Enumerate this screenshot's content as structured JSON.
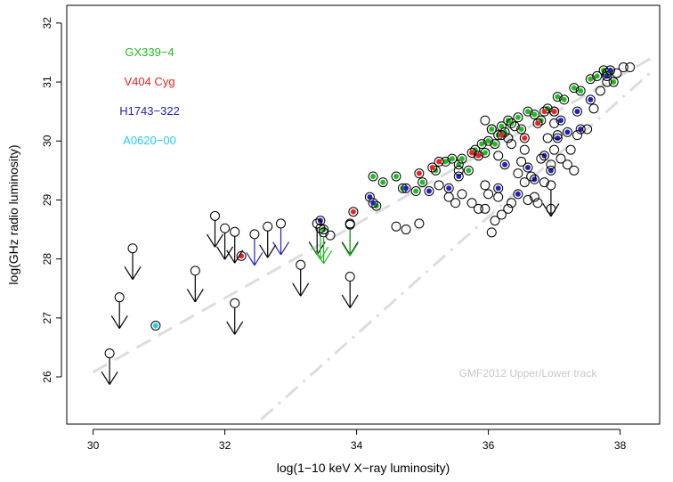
{
  "chart_data": {
    "type": "scatter",
    "xlabel": "log(1−10 keV X−ray luminosity)",
    "ylabel": "log(GHz radio luminosity)",
    "xlim": [
      29.6,
      38.6
    ],
    "ylim": [
      25.2,
      32.3
    ],
    "x_ticks": [
      30,
      32,
      34,
      36,
      38
    ],
    "y_ticks": [
      26,
      27,
      28,
      29,
      30,
      31,
      32
    ],
    "grid": false,
    "legend": {
      "placement": "top-left",
      "entries": [
        {
          "label": "GX339−4",
          "color": "#22bb22"
        },
        {
          "label": "V404 Cyg",
          "color": "#ee2222"
        },
        {
          "label": "H1743−322",
          "color": "#2222bb"
        },
        {
          "label": "A0620−00",
          "color": "#22ccee"
        }
      ]
    },
    "annotation": {
      "text": "GMF2012 Upper/Lower track",
      "color": "#c8c8c8",
      "x": 36.6,
      "y": 26.0
    },
    "tracks": [
      {
        "style": "dashed",
        "color": "#dddddd",
        "points": [
          [
            30.0,
            26.08
          ],
          [
            38.5,
            31.42
          ]
        ]
      },
      {
        "style": "dashdot",
        "color": "#dddddd",
        "points": [
          [
            32.55,
            25.28
          ],
          [
            38.5,
            31.2
          ]
        ]
      }
    ],
    "series": [
      {
        "name": "GX339−4",
        "marker": "filled-dot-in-circle",
        "color": "#22bb22",
        "points": [
          [
            34.25,
            29.4
          ],
          [
            34.4,
            29.3
          ],
          [
            34.6,
            29.4
          ],
          [
            34.7,
            29.2
          ],
          [
            34.9,
            29.15
          ],
          [
            35.0,
            29.3
          ],
          [
            35.2,
            29.5
          ],
          [
            35.35,
            29.65
          ],
          [
            35.45,
            29.7
          ],
          [
            35.55,
            29.6
          ],
          [
            35.6,
            29.7
          ],
          [
            35.7,
            29.5
          ],
          [
            35.8,
            29.85
          ],
          [
            35.9,
            29.95
          ],
          [
            36.0,
            30.0
          ],
          [
            36.05,
            30.2
          ],
          [
            36.15,
            30.1
          ],
          [
            36.2,
            30.25
          ],
          [
            36.3,
            30.35
          ],
          [
            36.35,
            30.3
          ],
          [
            36.45,
            30.4
          ],
          [
            36.5,
            30.2
          ],
          [
            36.6,
            30.5
          ],
          [
            36.7,
            30.45
          ],
          [
            36.8,
            30.35
          ],
          [
            36.9,
            30.55
          ],
          [
            37.0,
            30.5
          ],
          [
            37.05,
            30.75
          ],
          [
            37.15,
            30.7
          ],
          [
            37.3,
            30.9
          ],
          [
            37.4,
            30.85
          ],
          [
            37.55,
            31.05
          ],
          [
            37.65,
            31.1
          ],
          [
            37.75,
            31.2
          ],
          [
            37.8,
            31.15
          ],
          [
            37.9,
            31.0
          ],
          [
            36.1,
            29.95
          ],
          [
            36.25,
            30.15
          ],
          [
            35.95,
            29.8
          ],
          [
            34.3,
            28.9
          ],
          [
            33.5,
            28.5
          ]
        ]
      },
      {
        "name": "V404 Cyg",
        "marker": "filled-dot-in-circle",
        "color": "#ee2222",
        "points": [
          [
            32.25,
            28.05
          ],
          [
            33.95,
            28.8
          ],
          [
            34.95,
            29.45
          ],
          [
            35.15,
            29.55
          ],
          [
            35.25,
            29.65
          ],
          [
            35.75,
            29.8
          ],
          [
            35.85,
            29.75
          ],
          [
            36.2,
            30.1
          ],
          [
            36.55,
            30.05
          ],
          [
            36.75,
            30.3
          ],
          [
            36.85,
            30.5
          ],
          [
            37.0,
            30.5
          ]
        ]
      },
      {
        "name": "H1743−322",
        "marker": "filled-dot-in-circle",
        "color": "#2222bb",
        "points": [
          [
            33.45,
            28.65
          ],
          [
            34.2,
            29.05
          ],
          [
            34.25,
            28.95
          ],
          [
            34.75,
            29.2
          ],
          [
            35.1,
            29.15
          ],
          [
            35.4,
            29.2
          ],
          [
            35.55,
            29.4
          ],
          [
            36.15,
            29.2
          ],
          [
            36.25,
            29.6
          ],
          [
            36.45,
            29.1
          ],
          [
            36.6,
            29.55
          ],
          [
            36.7,
            29.35
          ],
          [
            36.85,
            29.75
          ],
          [
            36.95,
            29.5
          ],
          [
            37.05,
            30.05
          ],
          [
            37.2,
            30.15
          ],
          [
            37.35,
            30.5
          ],
          [
            37.55,
            30.7
          ],
          [
            37.8,
            31.1
          ],
          [
            37.85,
            31.2
          ],
          [
            37.4,
            30.2
          ],
          [
            37.1,
            30.35
          ]
        ]
      },
      {
        "name": "A0620−00",
        "marker": "filled-dot-in-circle",
        "color": "#22ccee",
        "points": [
          [
            30.95,
            26.87
          ]
        ]
      },
      {
        "name": "",
        "marker": "open-circle",
        "color": "#000000",
        "points": [
          [
            33.6,
            28.4
          ],
          [
            34.6,
            28.55
          ],
          [
            34.75,
            28.5
          ],
          [
            34.95,
            28.6
          ],
          [
            35.4,
            29.05
          ],
          [
            35.5,
            28.95
          ],
          [
            35.6,
            29.1
          ],
          [
            35.75,
            28.95
          ],
          [
            35.85,
            28.85
          ],
          [
            35.95,
            28.85
          ],
          [
            35.95,
            29.25
          ],
          [
            36.0,
            29.1
          ],
          [
            36.05,
            28.45
          ],
          [
            36.1,
            28.65
          ],
          [
            36.15,
            29.05
          ],
          [
            36.2,
            28.75
          ],
          [
            36.3,
            28.85
          ],
          [
            36.35,
            28.95
          ],
          [
            35.95,
            30.35
          ],
          [
            36.05,
            30.2
          ],
          [
            36.15,
            29.75
          ],
          [
            36.3,
            30.05
          ],
          [
            36.45,
            29.45
          ],
          [
            36.5,
            29.65
          ],
          [
            36.55,
            29.3
          ],
          [
            36.6,
            29.0
          ],
          [
            36.65,
            29.4
          ],
          [
            36.7,
            29.05
          ],
          [
            36.75,
            28.95
          ],
          [
            36.85,
            29.3
          ],
          [
            36.95,
            28.85
          ],
          [
            36.95,
            29.6
          ],
          [
            37.0,
            29.85
          ],
          [
            37.05,
            30.1
          ],
          [
            37.1,
            29.7
          ],
          [
            37.2,
            29.6
          ],
          [
            37.3,
            29.5
          ],
          [
            37.35,
            30.1
          ],
          [
            37.5,
            30.2
          ],
          [
            37.6,
            30.55
          ],
          [
            37.7,
            30.85
          ],
          [
            37.8,
            31.0
          ],
          [
            37.95,
            31.15
          ],
          [
            38.05,
            31.25
          ],
          [
            38.15,
            31.25
          ],
          [
            36.35,
            29.95
          ],
          [
            36.4,
            30.25
          ],
          [
            36.55,
            29.85
          ],
          [
            36.8,
            29.7
          ],
          [
            36.9,
            30.05
          ],
          [
            37.0,
            30.3
          ],
          [
            37.25,
            29.85
          ],
          [
            35.55,
            29.5
          ],
          [
            35.25,
            29.25
          ]
        ]
      },
      {
        "name": "",
        "marker": "upper-limit",
        "color": "#000000",
        "points": [
          [
            30.25,
            26.4
          ],
          [
            30.4,
            27.35
          ],
          [
            30.6,
            28.18
          ],
          [
            31.55,
            27.8
          ],
          [
            31.85,
            28.73
          ],
          [
            32.0,
            28.52
          ],
          [
            32.15,
            28.46
          ],
          [
            32.15,
            27.25
          ],
          [
            32.65,
            28.55
          ],
          [
            33.15,
            27.9
          ],
          [
            33.4,
            28.6
          ],
          [
            33.9,
            28.6
          ],
          [
            33.9,
            27.7
          ],
          [
            36.95,
            29.25
          ]
        ]
      },
      {
        "name": "",
        "marker": "upper-limit",
        "color": "#2222bb",
        "points": [
          [
            32.45,
            28.42
          ],
          [
            32.85,
            28.6
          ]
        ]
      },
      {
        "name": "",
        "marker": "upper-limit",
        "color": "#22bb22",
        "points": [
          [
            33.45,
            28.52
          ],
          [
            33.5,
            28.45
          ],
          [
            33.9,
            28.58
          ]
        ]
      }
    ]
  }
}
